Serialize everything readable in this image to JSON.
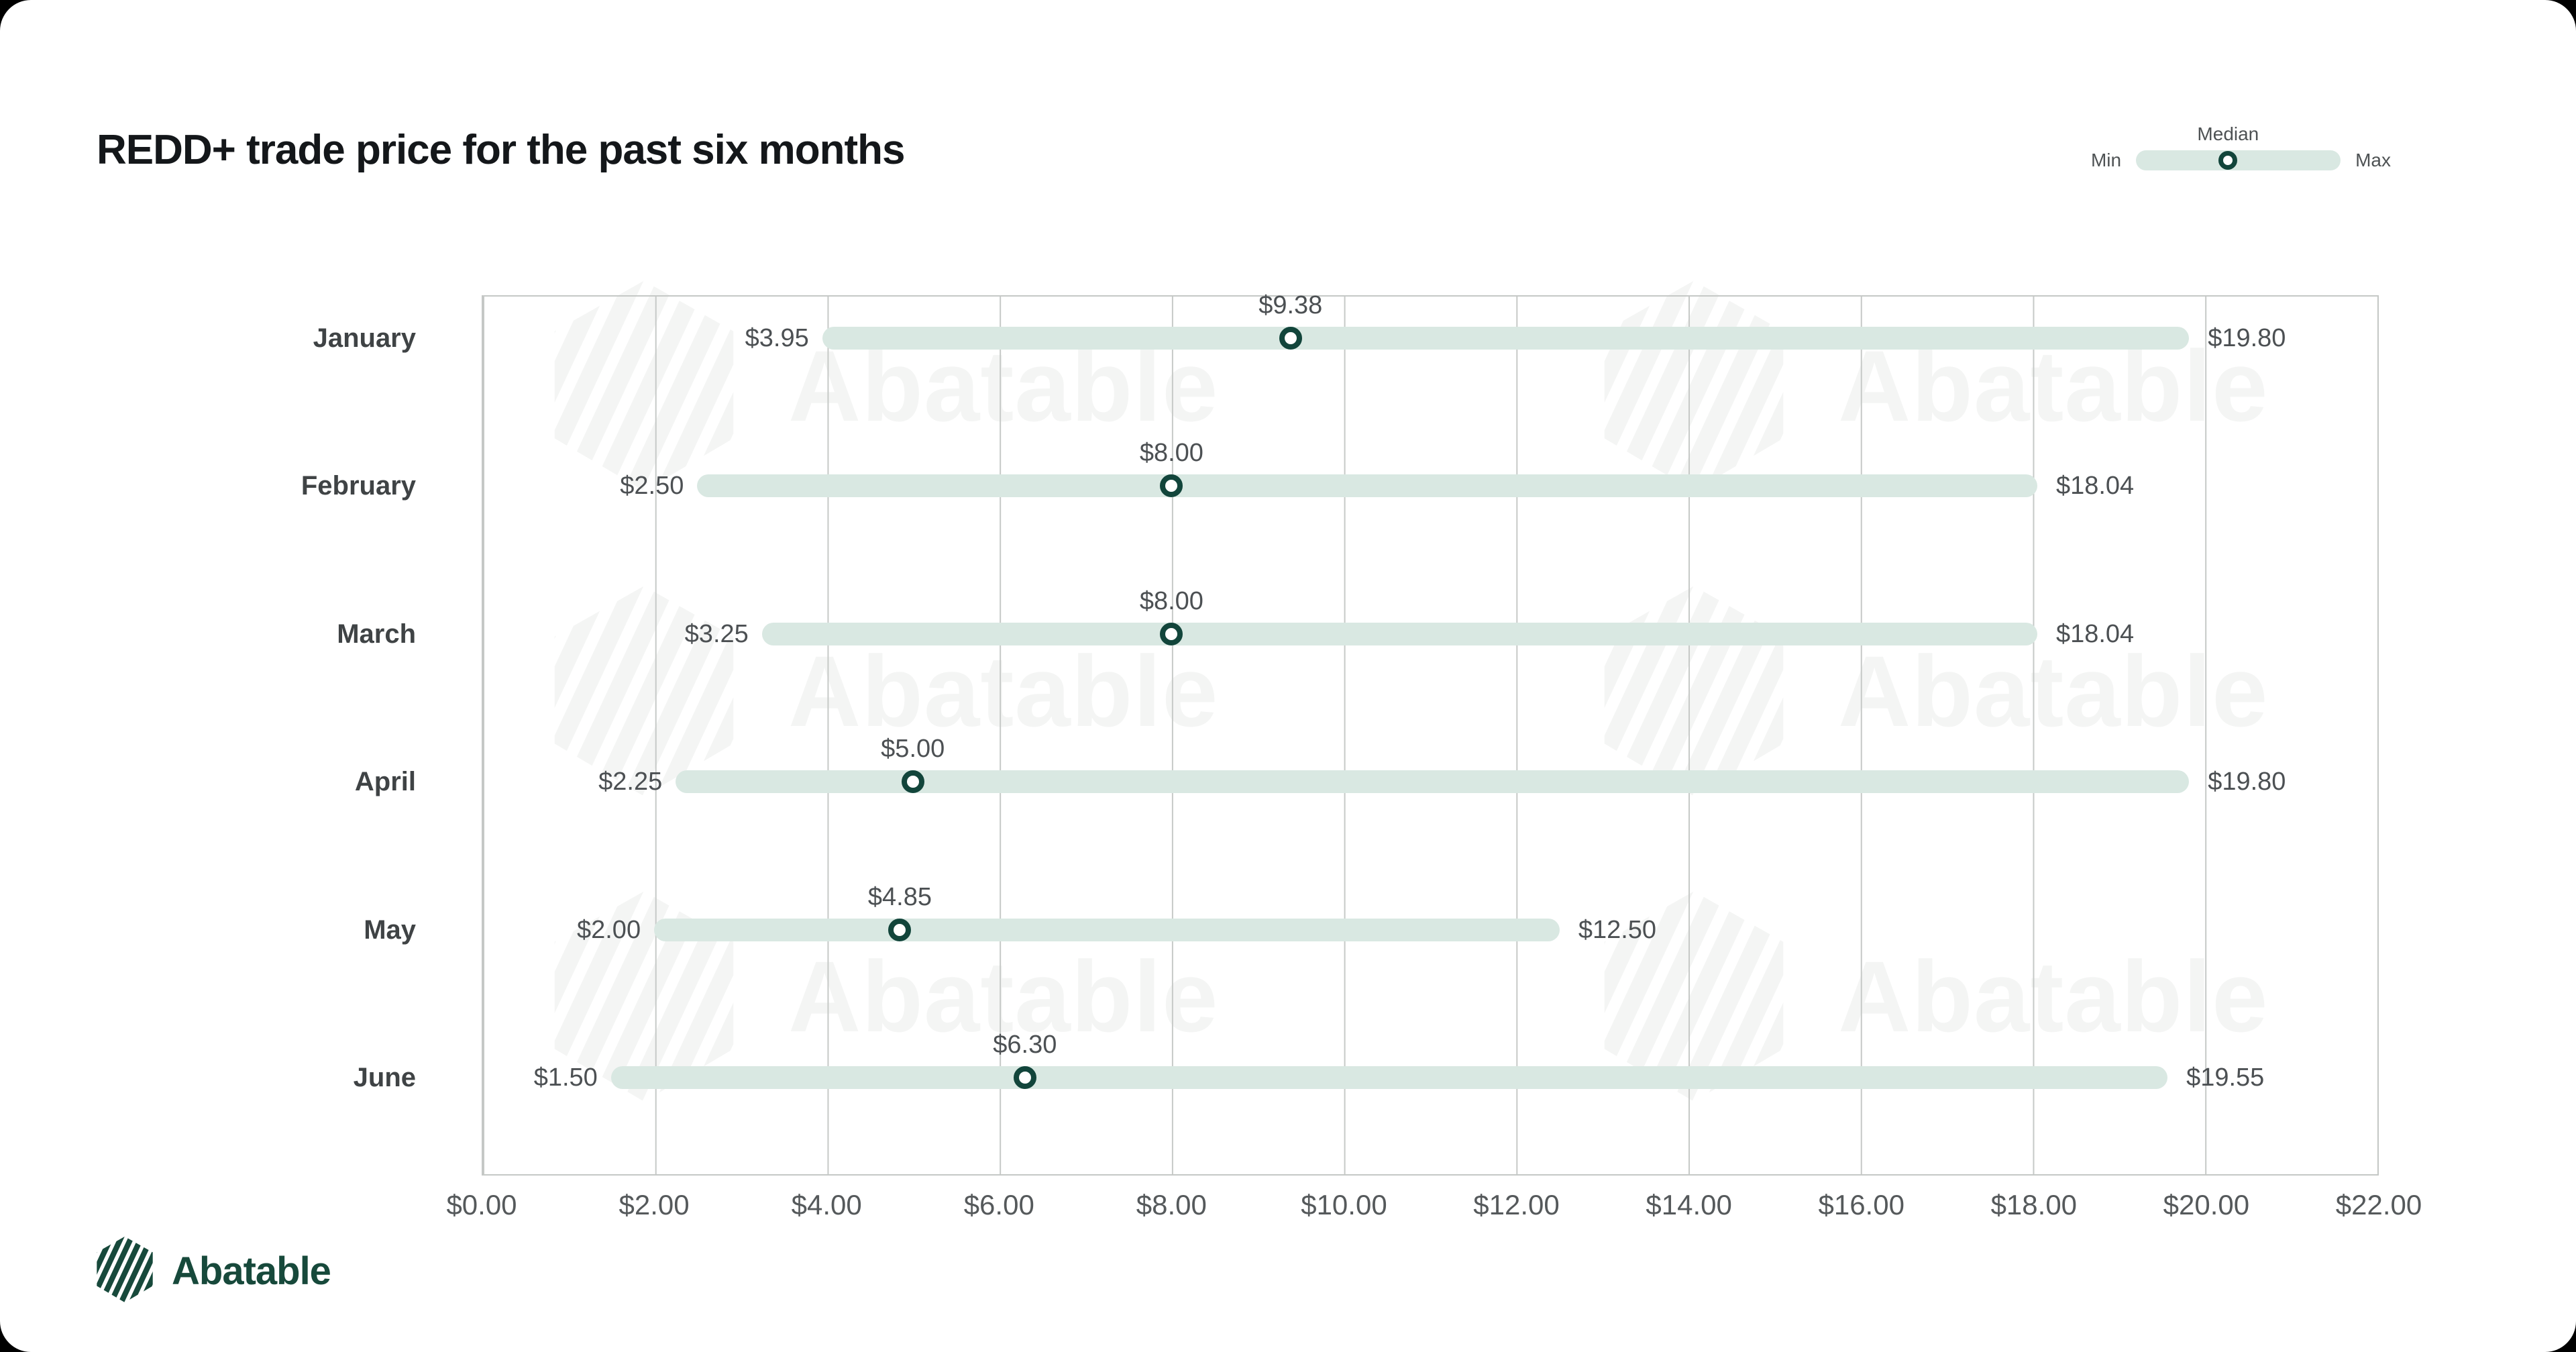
{
  "page": {
    "title": "REDD+ trade price for the past six months"
  },
  "legend": {
    "min_label": "Min",
    "median_label": "Median",
    "max_label": "Max"
  },
  "brand": {
    "logo_text": "Abatable",
    "watermark_text": "Abatable"
  },
  "colors": {
    "bar_fill": "#d9e8e2",
    "median_ring": "#12453b",
    "gridline": "#c6c9c7",
    "title_text": "#14171a",
    "label_text": "#4c5053",
    "brand_green": "#17493b",
    "watermark": "#f4f5f4",
    "card_bg": "#ffffff",
    "page_bg": "#000000"
  },
  "chart_data": {
    "type": "bar",
    "subtype": "horizontal_range_bar",
    "title": "REDD+ trade price for the past six months",
    "categories": [
      "January",
      "February",
      "March",
      "April",
      "May",
      "June"
    ],
    "series": [
      {
        "name": "Min",
        "values": [
          3.95,
          2.5,
          3.25,
          2.25,
          2.0,
          1.5
        ]
      },
      {
        "name": "Median",
        "values": [
          9.38,
          8.0,
          8.0,
          5.0,
          4.85,
          6.3
        ]
      },
      {
        "name": "Max",
        "values": [
          19.8,
          18.04,
          18.04,
          19.8,
          12.5,
          19.55
        ]
      }
    ],
    "months": [
      {
        "name": "January",
        "min": 3.95,
        "median": 9.38,
        "max": 19.8,
        "min_label": "$3.95",
        "median_label": "$9.38",
        "max_label": "$19.80"
      },
      {
        "name": "February",
        "min": 2.5,
        "median": 8.0,
        "max": 18.04,
        "min_label": "$2.50",
        "median_label": "$8.00",
        "max_label": "$18.04"
      },
      {
        "name": "March",
        "min": 3.25,
        "median": 8.0,
        "max": 18.04,
        "min_label": "$3.25",
        "median_label": "$8.00",
        "max_label": "$18.04"
      },
      {
        "name": "April",
        "min": 2.25,
        "median": 5.0,
        "max": 19.8,
        "min_label": "$2.25",
        "median_label": "$5.00",
        "max_label": "$19.80"
      },
      {
        "name": "May",
        "min": 2.0,
        "median": 4.85,
        "max": 12.5,
        "min_label": "$2.00",
        "median_label": "$4.85",
        "max_label": "$12.50"
      },
      {
        "name": "June",
        "min": 1.5,
        "median": 6.3,
        "max": 19.55,
        "min_label": "$1.50",
        "median_label": "$6.30",
        "max_label": "$19.55"
      }
    ],
    "x_ticks": [
      "$0.00",
      "$2.00",
      "$4.00",
      "$6.00",
      "$8.00",
      "$10.00",
      "$12.00",
      "$14.00",
      "$16.00",
      "$18.00",
      "$20.00",
      "$22.00"
    ],
    "xlim": [
      0,
      22
    ],
    "xlabel": "",
    "ylabel": "",
    "grid": true,
    "legend": {
      "position": "top-right",
      "items": [
        "Min",
        "Median",
        "Max"
      ]
    }
  }
}
